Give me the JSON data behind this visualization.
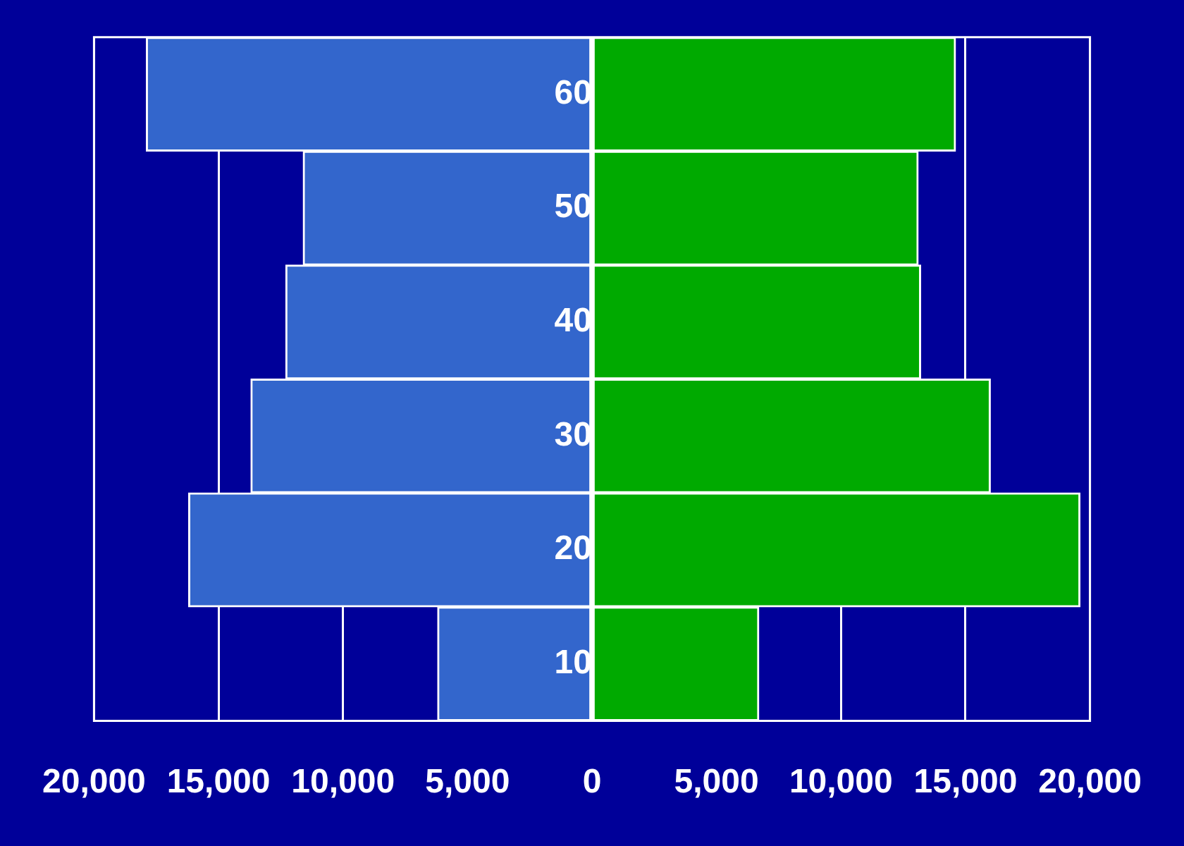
{
  "chart_data": {
    "type": "bar",
    "orientation": "horizontal",
    "stacked": true,
    "categories": [
      "60",
      "50",
      "40",
      "30",
      "20",
      "10"
    ],
    "series": [
      {
        "color": "#3366cc",
        "values": [
          -17900,
          -11600,
          -12300,
          -13700,
          -16200,
          -6200
        ]
      },
      {
        "color": "#00aa00",
        "values": [
          14600,
          13100,
          13200,
          16000,
          19600,
          6700
        ]
      }
    ],
    "xlim": [
      -20000,
      20000
    ],
    "xticks": [
      {
        "value": -20000,
        "label": "20,000"
      },
      {
        "value": -15000,
        "label": "15,000"
      },
      {
        "value": -10000,
        "label": "10,000"
      },
      {
        "value": -5000,
        "label": "5,000"
      },
      0,
      {
        "value": 5000,
        "label": "5,000"
      },
      {
        "value": 10000,
        "label": "10,000"
      },
      {
        "value": 15000,
        "label": "15,000"
      },
      {
        "value": 20000,
        "label": "20,000"
      }
    ],
    "grid": "x",
    "legend": false
  }
}
